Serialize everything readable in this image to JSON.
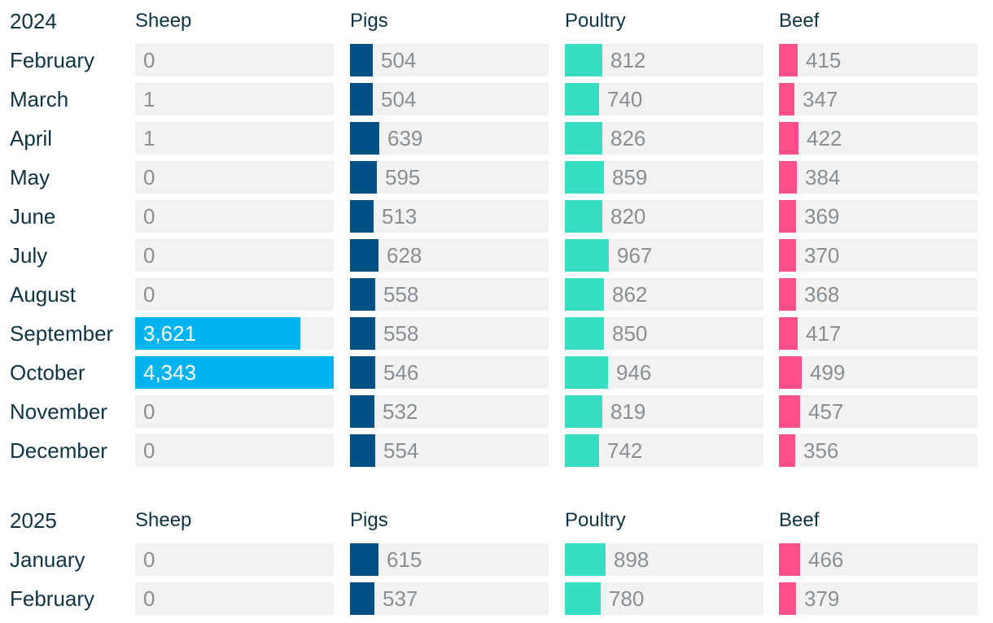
{
  "colors": {
    "sheep": "#00b4ef",
    "pigs": "#004f85",
    "poultry": "#37dfc2",
    "beef": "#ff4f89",
    "cell_bg": "#f2f2f2",
    "label": "#0f3340",
    "value": "#8a8f93"
  },
  "chart_data": {
    "type": "bar",
    "columns": [
      "Sheep",
      "Pigs",
      "Poultry",
      "Beef"
    ],
    "series_keys": [
      "sheep",
      "pigs",
      "poultry",
      "beef"
    ],
    "xlim": {
      "sheep": [
        0,
        4343
      ],
      "pigs": [
        0,
        4343
      ],
      "poultry": [
        0,
        4343
      ],
      "beef": [
        0,
        4343
      ]
    },
    "sections": [
      {
        "year": "2024",
        "rows": [
          {
            "month": "February",
            "sheep": 0,
            "pigs": 504,
            "poultry": 812,
            "beef": 415,
            "labels": {
              "sheep": "0",
              "pigs": "504",
              "poultry": "812",
              "beef": "415"
            }
          },
          {
            "month": "March",
            "sheep": 1,
            "pigs": 504,
            "poultry": 740,
            "beef": 347,
            "labels": {
              "sheep": "1",
              "pigs": "504",
              "poultry": "740",
              "beef": "347"
            }
          },
          {
            "month": "April",
            "sheep": 1,
            "pigs": 639,
            "poultry": 826,
            "beef": 422,
            "labels": {
              "sheep": "1",
              "pigs": "639",
              "poultry": "826",
              "beef": "422"
            }
          },
          {
            "month": "May",
            "sheep": 0,
            "pigs": 595,
            "poultry": 859,
            "beef": 384,
            "labels": {
              "sheep": "0",
              "pigs": "595",
              "poultry": "859",
              "beef": "384"
            }
          },
          {
            "month": "June",
            "sheep": 0,
            "pigs": 513,
            "poultry": 820,
            "beef": 369,
            "labels": {
              "sheep": "0",
              "pigs": "513",
              "poultry": "820",
              "beef": "369"
            }
          },
          {
            "month": "July",
            "sheep": 0,
            "pigs": 628,
            "poultry": 967,
            "beef": 370,
            "labels": {
              "sheep": "0",
              "pigs": "628",
              "poultry": "967",
              "beef": "370"
            }
          },
          {
            "month": "August",
            "sheep": 0,
            "pigs": 558,
            "poultry": 862,
            "beef": 368,
            "labels": {
              "sheep": "0",
              "pigs": "558",
              "poultry": "862",
              "beef": "368"
            }
          },
          {
            "month": "September",
            "sheep": 3621,
            "pigs": 558,
            "poultry": 850,
            "beef": 417,
            "labels": {
              "sheep": "3,621",
              "pigs": "558",
              "poultry": "850",
              "beef": "417"
            }
          },
          {
            "month": "October",
            "sheep": 4343,
            "pigs": 546,
            "poultry": 946,
            "beef": 499,
            "labels": {
              "sheep": "4,343",
              "pigs": "546",
              "poultry": "946",
              "beef": "499"
            }
          },
          {
            "month": "November",
            "sheep": 0,
            "pigs": 532,
            "poultry": 819,
            "beef": 457,
            "labels": {
              "sheep": "0",
              "pigs": "532",
              "poultry": "819",
              "beef": "457"
            }
          },
          {
            "month": "December",
            "sheep": 0,
            "pigs": 554,
            "poultry": 742,
            "beef": 356,
            "labels": {
              "sheep": "0",
              "pigs": "554",
              "poultry": "742",
              "beef": "356"
            }
          }
        ]
      },
      {
        "year": "2025",
        "rows": [
          {
            "month": "January",
            "sheep": 0,
            "pigs": 615,
            "poultry": 898,
            "beef": 466,
            "labels": {
              "sheep": "0",
              "pigs": "615",
              "poultry": "898",
              "beef": "466"
            }
          },
          {
            "month": "February",
            "sheep": 0,
            "pigs": 537,
            "poultry": 780,
            "beef": 379,
            "labels": {
              "sheep": "0",
              "pigs": "537",
              "poultry": "780",
              "beef": "379"
            }
          }
        ]
      }
    ]
  }
}
